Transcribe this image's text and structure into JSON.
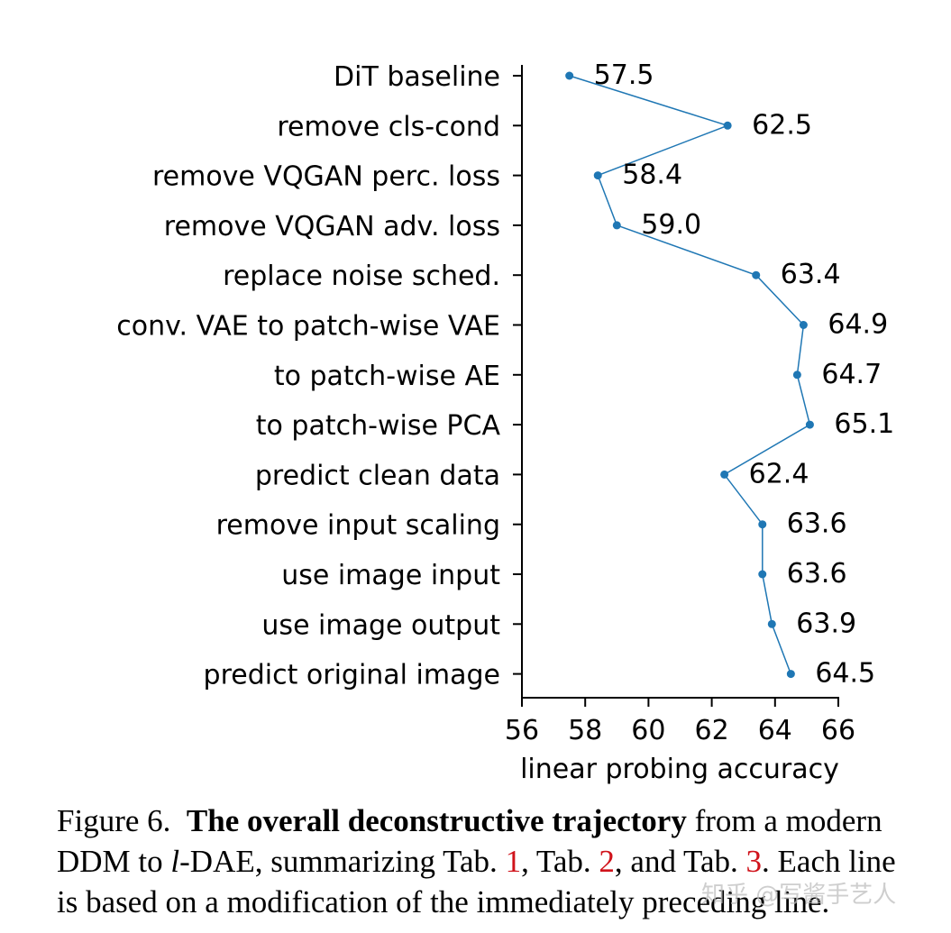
{
  "chart_data": {
    "type": "line",
    "orientation": "horizontal",
    "categories": [
      "DiT baseline",
      "remove cls-cond",
      "remove VQGAN perc. loss",
      "remove VQGAN adv. loss",
      "replace noise sched.",
      "conv. VAE to patch-wise VAE",
      "to patch-wise AE",
      "to patch-wise PCA",
      "predict clean data",
      "remove input scaling",
      "use image input",
      "use image output",
      "predict original image"
    ],
    "values": [
      57.5,
      62.5,
      58.4,
      59.0,
      63.4,
      64.9,
      64.7,
      65.1,
      62.4,
      63.6,
      63.6,
      63.9,
      64.5
    ],
    "value_labels": [
      "57.5",
      "62.5",
      "58.4",
      "59.0",
      "63.4",
      "64.9",
      "64.7",
      "65.1",
      "62.4",
      "63.6",
      "63.6",
      "63.9",
      "64.5"
    ],
    "xlabel": "linear probing accuracy",
    "ylabel": "",
    "xlim": [
      56,
      66
    ],
    "xticks": [
      56,
      58,
      60,
      62,
      64,
      66
    ],
    "xtick_labels": [
      "56",
      "58",
      "60",
      "62",
      "64",
      "66"
    ],
    "line_color": "#1f77b4",
    "grid": false,
    "legend": "none"
  },
  "caption": {
    "label": "Figure 6.",
    "title": "The overall deconstructive trajectory",
    "text1": "from a modern",
    "text2_a": "DDM to",
    "text2_l": "l",
    "text2_b": "-DAE, summarizing Tab.",
    "ref1": "1",
    "text2_c": ", Tab.",
    "ref2": "2",
    "text2_d": ", and Tab.",
    "ref3": "3",
    "text2_e": ". Each line",
    "text3": "is based on a modification of the immediately preceding line.",
    "ref_color": "#d0131b"
  },
  "watermark": {
    "text": "知乎 @写酱手艺人"
  }
}
